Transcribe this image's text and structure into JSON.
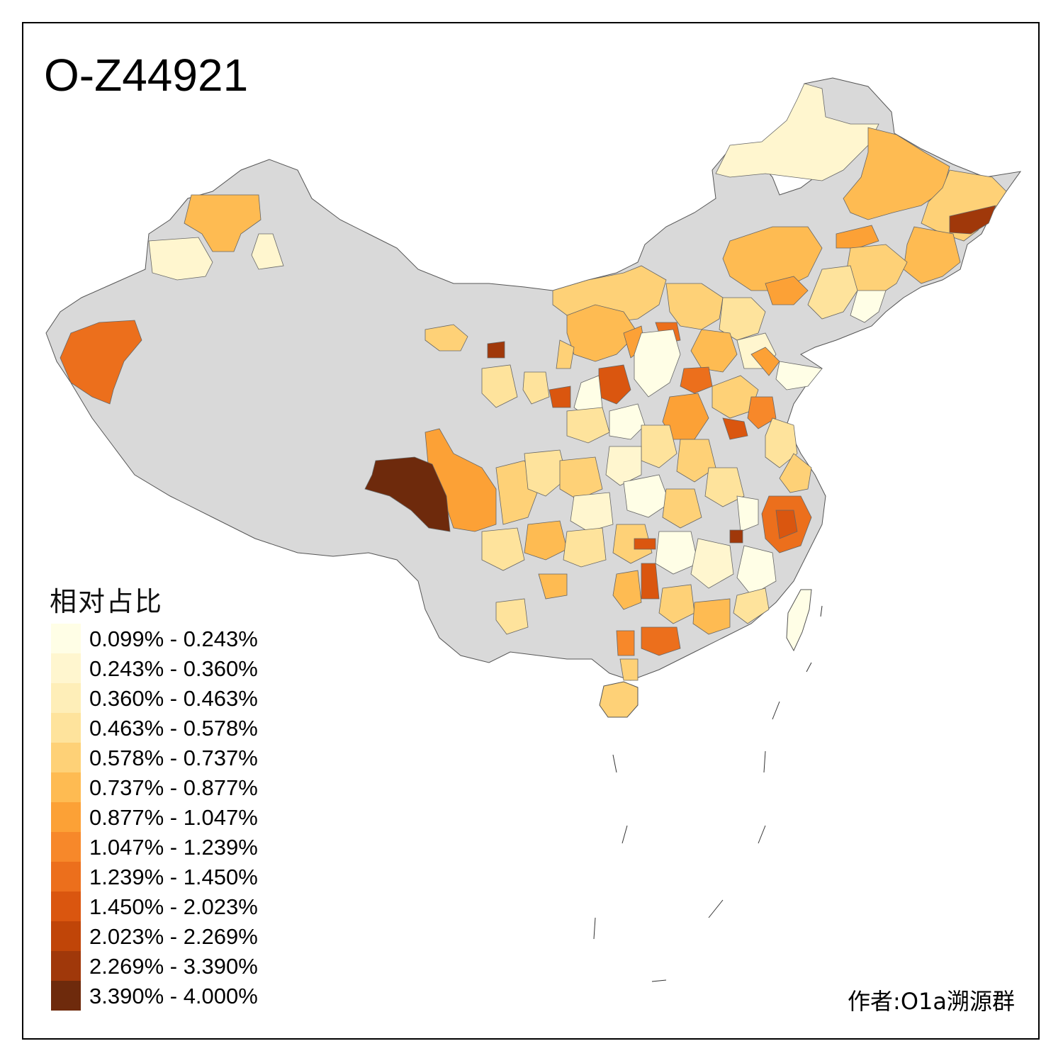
{
  "title": "O-Z44921",
  "legend": {
    "title": "相对占比",
    "items": [
      {
        "label": "0.099% - 0.243%",
        "color": "#fffee6"
      },
      {
        "label": "0.243% - 0.360%",
        "color": "#fff6cf"
      },
      {
        "label": "0.360% - 0.463%",
        "color": "#feeeb8"
      },
      {
        "label": "0.463% - 0.578%",
        "color": "#fee39c"
      },
      {
        "label": "0.578% - 0.737%",
        "color": "#fed177"
      },
      {
        "label": "0.737% - 0.877%",
        "color": "#febb52"
      },
      {
        "label": "0.877% - 1.047%",
        "color": "#fca136"
      },
      {
        "label": "1.047% - 1.239%",
        "color": "#f7882a"
      },
      {
        "label": "1.239% - 1.450%",
        "color": "#ec6f1c"
      },
      {
        "label": "1.450% - 2.023%",
        "color": "#da560f"
      },
      {
        "label": "2.023% - 2.269%",
        "color": "#c04508"
      },
      {
        "label": "2.269% - 3.390%",
        "color": "#a0380a"
      },
      {
        "label": "3.390% - 4.000%",
        "color": "#6e2a0c"
      }
    ]
  },
  "no_data_color": "#d9d9d9",
  "credit": "作者:O1a溯源群"
}
